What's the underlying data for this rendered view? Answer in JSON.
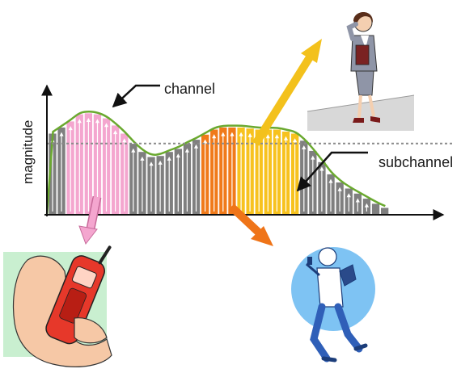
{
  "labels": {
    "channel": "channel",
    "subchannel": "subchannel",
    "y_axis": "magnitude"
  },
  "colors": {
    "gray_bar": "#7f7f7f",
    "pink_bar": "#f4a6cf",
    "orange_bar": "#f07a1a",
    "yellow_bar": "#f7c21e",
    "channel_curve": "#6aa92f",
    "threshold_line": "#8a8a8a",
    "arrow_yellow": "#f3c11c",
    "arrow_orange": "#ef7418",
    "arrow_pink": "#f4a6cf"
  },
  "icons": {
    "left_user": "mobile-phone-in-hand",
    "top_user": "businesswoman-on-phone",
    "bottom_user": "man-walking-with-phone"
  },
  "subchannel_groups": [
    {
      "color": "gray",
      "levels": [
        0.8,
        0.86
      ]
    },
    {
      "color": "pink",
      "levels": [
        0.92,
        0.99,
        1.0,
        0.99,
        0.95,
        0.88,
        0.8
      ]
    },
    {
      "color": "gray",
      "levels": [
        0.7,
        0.62,
        0.57,
        0.58,
        0.62,
        0.65,
        0.7,
        0.74
      ]
    },
    {
      "color": "orange",
      "levels": [
        0.79,
        0.84,
        0.86,
        0.86
      ]
    },
    {
      "color": "yellow",
      "levels": [
        0.86,
        0.85,
        0.84,
        0.84,
        0.84,
        0.82,
        0.8
      ]
    },
    {
      "color": "gray",
      "levels": [
        0.73,
        0.63,
        0.52,
        0.4,
        0.32,
        0.26,
        0.21,
        0.16,
        0.11,
        0.07
      ]
    }
  ],
  "threshold_level": 0.7
}
